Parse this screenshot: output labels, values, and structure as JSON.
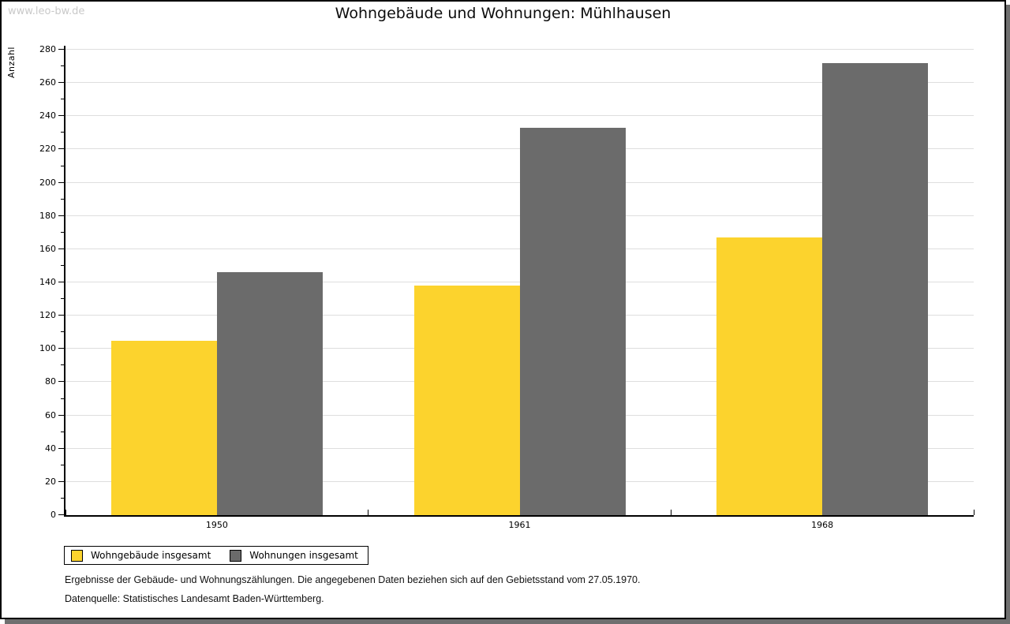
{
  "page": {
    "watermark": "www.leo-bw.de",
    "title": "Wohngebäude und Wohnungen: Mühlhausen",
    "footnotes": [
      "Ergebnisse der Gebäude- und Wohnungszählungen. Die angegebenen Daten beziehen sich auf den Gebietsstand vom 27.05.1970.",
      "Datenquelle: Statistisches Landesamt Baden-Württemberg."
    ]
  },
  "chart_data": {
    "type": "bar",
    "title": "Wohngebäude und Wohnungen: Mühlhausen",
    "xlabel": "",
    "ylabel": "Anzahl",
    "categories": [
      "1950",
      "1961",
      "1968"
    ],
    "series": [
      {
        "name": "Wohngebäude insgesamt",
        "color": "#fcd32d",
        "values": [
          105,
          138,
          167
        ]
      },
      {
        "name": "Wohnungen insgesamt",
        "color": "#6b6b6b",
        "values": [
          146,
          233,
          272
        ]
      }
    ],
    "ylim": [
      0,
      280
    ],
    "ytick_major": 20,
    "ytick_minor": 10,
    "grid": true,
    "legend_position": "bottom-left",
    "colors": {
      "gridline": "#dedede",
      "axis": "#000000",
      "watermark": "#c9c9c9",
      "page_shadow": "#6f6f6f"
    }
  }
}
